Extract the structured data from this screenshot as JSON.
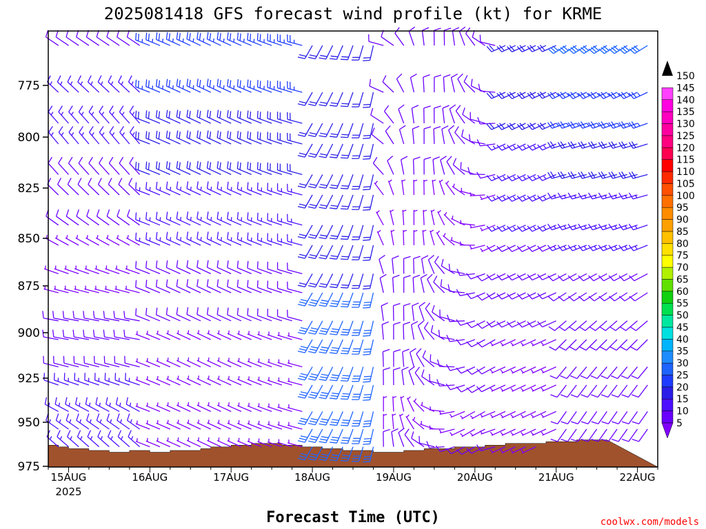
{
  "chart_data": {
    "type": "wind-barb-profile",
    "title": "2025081418 GFS forecast wind profile (kt) for KRME",
    "xlabel": "Forecast Time (UTC)",
    "ylabel": "",
    "credit": "coolwx.com/models",
    "units": "kt",
    "x_ticks": [
      {
        "label": "15AUG",
        "sub": "2025",
        "t": 6
      },
      {
        "label": "16AUG",
        "sub": "",
        "t": 30
      },
      {
        "label": "17AUG",
        "sub": "",
        "t": 54
      },
      {
        "label": "18AUG",
        "sub": "",
        "t": 78
      },
      {
        "label": "19AUG",
        "sub": "",
        "t": 102
      },
      {
        "label": "20AUG",
        "sub": "",
        "t": 126
      },
      {
        "label": "21AUG",
        "sub": "",
        "t": 150
      },
      {
        "label": "22AUG",
        "sub": "",
        "t": 174
      }
    ],
    "xlim_hours": [
      0,
      180
    ],
    "y_ticks": [
      "775",
      "800",
      "825",
      "850",
      "875",
      "900",
      "925",
      "950",
      "975"
    ],
    "ylim_hpa": [
      758,
      975
    ],
    "pressure_levels": [
      760,
      775,
      790,
      800,
      815,
      825,
      840,
      850,
      865,
      875,
      890,
      900,
      915,
      925,
      940,
      950,
      960
    ],
    "time_step_hours": 3,
    "colorbar": {
      "ticks": [
        "5",
        "10",
        "15",
        "20",
        "25",
        "30",
        "35",
        "40",
        "45",
        "50",
        "55",
        "60",
        "65",
        "70",
        "75",
        "80",
        "85",
        "90",
        "95",
        "100",
        "105",
        "110",
        "115",
        "120",
        "125",
        "130",
        "135",
        "140",
        "145",
        "150"
      ],
      "colors": [
        "#8000ff",
        "#6a00ff",
        "#4c10ff",
        "#2a1ee8",
        "#1e3cff",
        "#1e64ff",
        "#1e8cff",
        "#00b4ff",
        "#00e0e0",
        "#00e8a0",
        "#00e050",
        "#10d010",
        "#60e000",
        "#b0f000",
        "#ffff00",
        "#ffe000",
        "#ffc000",
        "#ffa000",
        "#ff8c00",
        "#ff7000",
        "#ff5000",
        "#ff2a00",
        "#ff0000",
        "#ff0050",
        "#ff0080",
        "#ff00a0",
        "#ff00c0",
        "#ff00e0",
        "#ff40ff",
        "#ff80ff"
      ]
    },
    "terrain_color": "#a0522d",
    "terrain_surface_hpa": [
      963,
      964,
      965,
      965,
      966,
      966,
      967,
      967,
      966,
      966,
      967,
      967,
      966,
      966,
      966,
      965,
      964,
      964,
      963,
      963,
      962,
      962,
      962,
      963,
      963,
      964,
      964,
      965,
      965,
      966,
      966,
      966,
      967,
      967,
      967,
      966,
      966,
      965,
      965,
      965,
      964,
      964,
      964,
      963,
      963,
      962,
      962,
      962,
      962,
      961,
      961,
      961,
      960,
      960,
      960
    ]
  }
}
